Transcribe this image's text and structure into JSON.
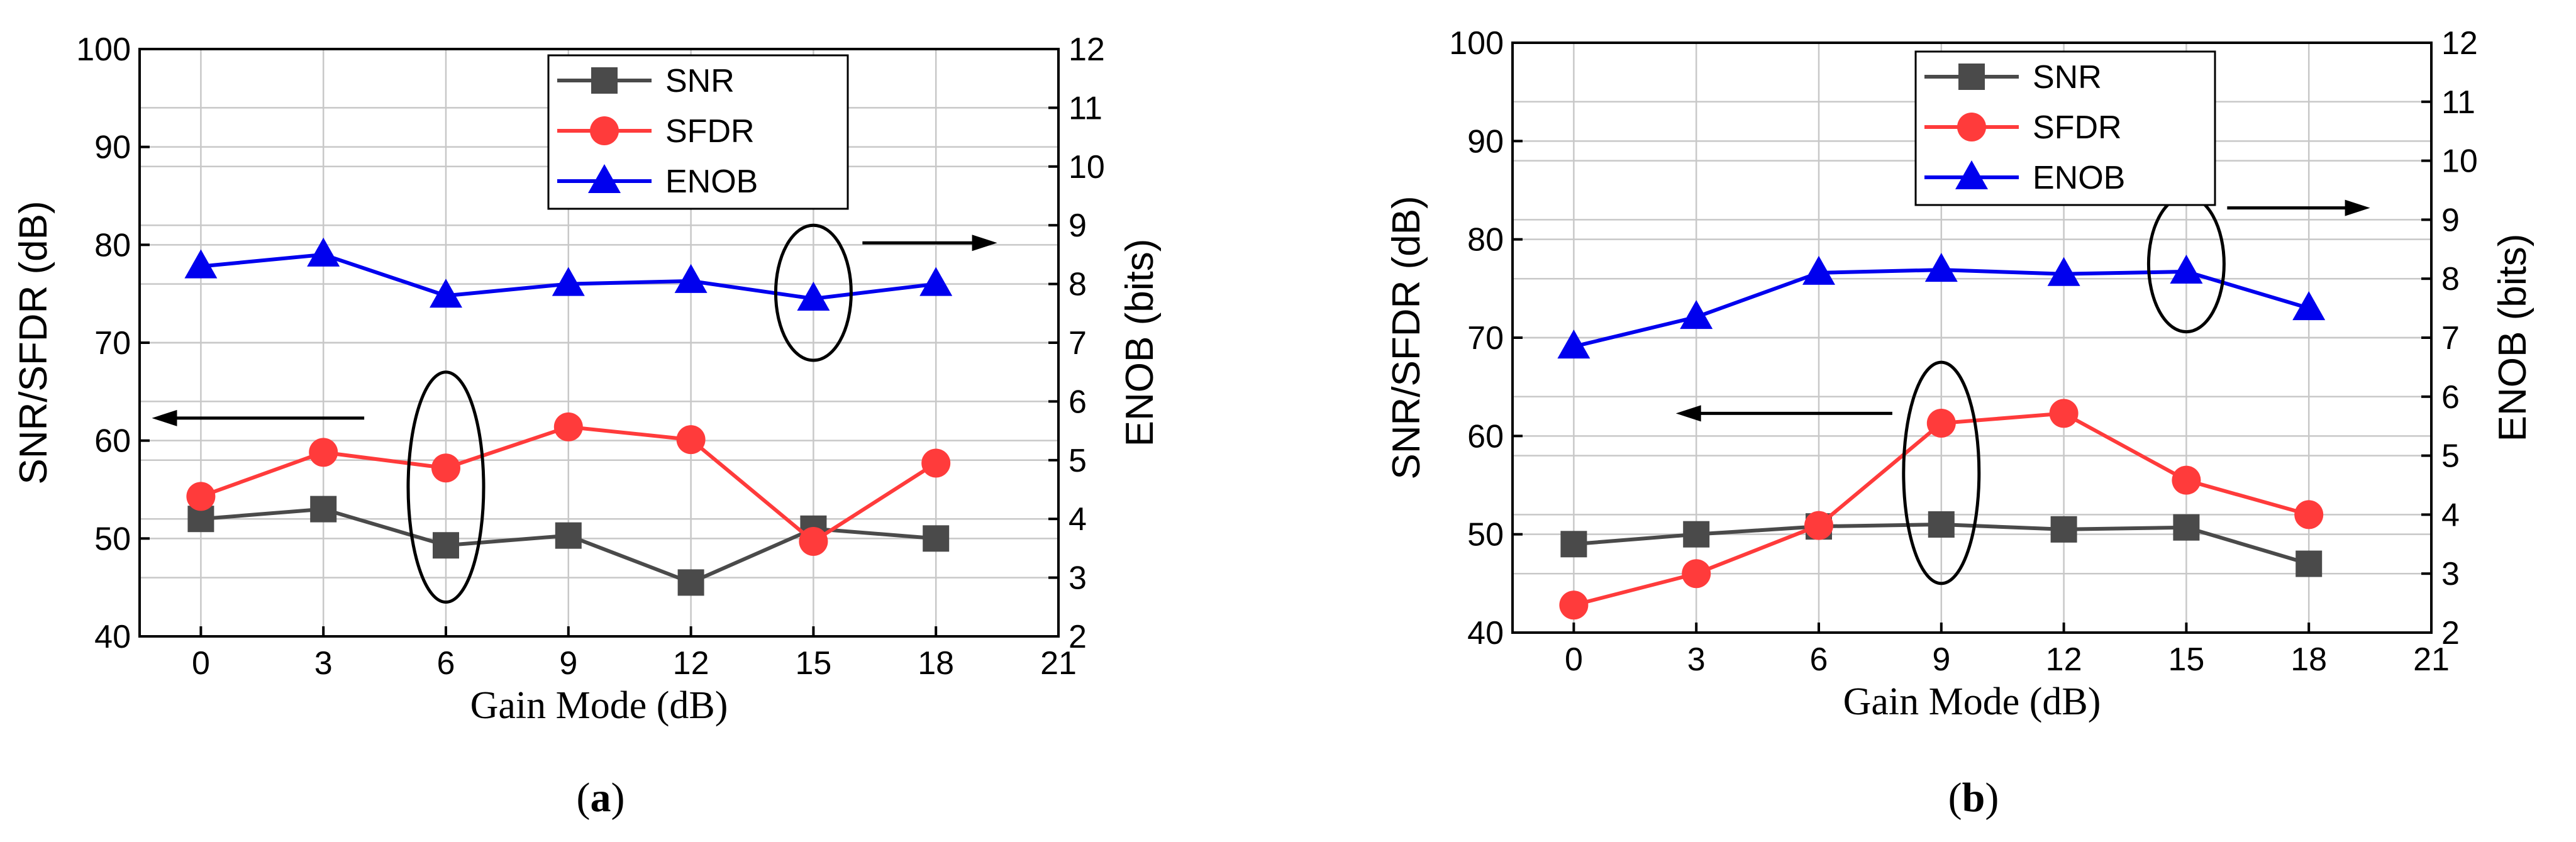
{
  "chart_data": [
    {
      "type": "line",
      "caption": "a",
      "xlabel": "Gain Mode (dB)",
      "ylabel": "SNR/SFDR (dB)",
      "y2label": "ENOB (bits)",
      "xlim": [
        -1.5,
        21
      ],
      "ylim": [
        40,
        100
      ],
      "y2lim": [
        2,
        12
      ],
      "xticks": [
        0,
        3,
        6,
        9,
        12,
        15,
        18,
        21
      ],
      "yticks": [
        40,
        50,
        60,
        70,
        80,
        90,
        100
      ],
      "y2ticks": [
        2,
        3,
        4,
        5,
        6,
        7,
        8,
        9,
        10,
        11,
        12
      ],
      "grid": true,
      "legend_position": "top-center",
      "x": [
        0,
        3,
        6,
        9,
        12,
        15,
        18
      ],
      "series": [
        {
          "name": "SNR",
          "axis": "left",
          "marker": "square",
          "color": "#4a4a4a",
          "values": [
            52,
            53,
            49.3,
            50.3,
            45.5,
            51,
            50
          ]
        },
        {
          "name": "SFDR",
          "axis": "left",
          "marker": "circle",
          "color": "#ff3b3b",
          "values": [
            54.3,
            58.8,
            57.2,
            61.4,
            60.1,
            49.7,
            57.7
          ]
        },
        {
          "name": "ENOB",
          "axis": "right",
          "marker": "triangle",
          "color": "#0000ee",
          "values": [
            8.3,
            8.5,
            7.8,
            8.0,
            8.05,
            7.75,
            8.0
          ]
        }
      ],
      "annotations": [
        {
          "type": "ellipse",
          "x": 6,
          "y_axis": "left",
          "y_lo": 43.5,
          "y_hi": 67
        },
        {
          "type": "ellipse",
          "x": 15,
          "y_axis": "right",
          "y_lo": 6.7,
          "y_hi": 9.0
        },
        {
          "type": "arrow",
          "direction": "left",
          "x_from": 4,
          "x_to": -1.2,
          "y_axis": "left",
          "y": 62.3
        },
        {
          "type": "arrow",
          "direction": "right",
          "x_from": 16.2,
          "x_to": 19.5,
          "y_axis": "right",
          "y": 8.7
        }
      ]
    },
    {
      "type": "line",
      "caption": "b",
      "xlabel": "Gain Mode (dB)",
      "ylabel": "SNR/SFDR (dB)",
      "y2label": "ENOB (bits)",
      "xlim": [
        -1.5,
        21
      ],
      "ylim": [
        40,
        100
      ],
      "y2lim": [
        2,
        12
      ],
      "xticks": [
        0,
        3,
        6,
        9,
        12,
        15,
        18,
        21
      ],
      "yticks": [
        40,
        50,
        60,
        70,
        80,
        90,
        100
      ],
      "y2ticks": [
        2,
        3,
        4,
        5,
        6,
        7,
        8,
        9,
        10,
        11,
        12
      ],
      "grid": true,
      "legend_position": "top-center",
      "x": [
        0,
        3,
        6,
        9,
        12,
        15,
        18
      ],
      "series": [
        {
          "name": "SNR",
          "axis": "left",
          "marker": "square",
          "color": "#4a4a4a",
          "values": [
            49,
            50,
            50.8,
            51,
            50.5,
            50.7,
            47
          ]
        },
        {
          "name": "SFDR",
          "axis": "left",
          "marker": "circle",
          "color": "#ff3b3b",
          "values": [
            42.8,
            46,
            50.9,
            61.3,
            62.3,
            55.5,
            52
          ]
        },
        {
          "name": "ENOB",
          "axis": "right",
          "marker": "triangle",
          "color": "#0000ee",
          "values": [
            6.85,
            7.35,
            8.1,
            8.15,
            8.08,
            8.12,
            7.5
          ]
        }
      ],
      "annotations": [
        {
          "type": "ellipse",
          "x": 9,
          "y_axis": "left",
          "y_lo": 45,
          "y_hi": 67.5
        },
        {
          "type": "ellipse",
          "x": 15,
          "y_axis": "right",
          "y_lo": 7.1,
          "y_hi": 9.4
        },
        {
          "type": "arrow",
          "direction": "left",
          "x_from": 7.8,
          "x_to": 2.5,
          "y_axis": "left",
          "y": 62.3
        },
        {
          "type": "arrow",
          "direction": "right",
          "x_from": 16,
          "x_to": 19.5,
          "y_axis": "right",
          "y": 9.2
        }
      ]
    }
  ]
}
